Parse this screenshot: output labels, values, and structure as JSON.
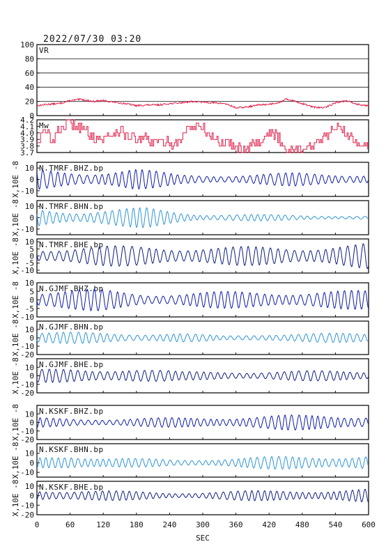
{
  "timestamp": "2022/07/30 03:20",
  "colors": {
    "frame": "#111111",
    "grid": "#111111",
    "vr_line": "#e0204a",
    "mw_line": "#e0204a",
    "bhz": "#0a1aa8",
    "bhn": "#2a93d8",
    "bhe": "#0a1a80"
  },
  "chart_data": [
    {
      "type": "line",
      "name": "vr-panel",
      "title": "VR",
      "ylim": [
        0,
        100
      ],
      "yticks": [
        "0",
        "20",
        "40",
        "60",
        "80",
        "100"
      ],
      "ytick_values": [
        0,
        20,
        40,
        60,
        80,
        100
      ],
      "grid": true,
      "xlim": [
        0,
        600
      ],
      "series": [
        {
          "x": [
            0,
            20,
            40,
            60,
            80,
            100,
            120,
            140,
            160,
            180,
            200,
            220,
            240,
            260,
            280,
            300,
            320,
            340,
            360,
            380,
            400,
            420,
            440,
            450,
            460,
            480,
            500,
            520,
            540,
            560,
            580,
            600
          ],
          "y": [
            14,
            16,
            17,
            21,
            23,
            20,
            21,
            19,
            17,
            14,
            15,
            15,
            17,
            18,
            20,
            19,
            18,
            17,
            11,
            12,
            15,
            16,
            19,
            23,
            22,
            17,
            12,
            11,
            18,
            21,
            16,
            14
          ]
        }
      ]
    },
    {
      "type": "line",
      "name": "mw-panel",
      "title": "Mw",
      "ylim": [
        3.7,
        4.2
      ],
      "yticks": [
        "3.7",
        "3.8",
        "3.9",
        "4.0",
        "4.1",
        "4.2"
      ],
      "ytick_values": [
        3.7,
        3.8,
        3.9,
        4.0,
        4.1,
        4.2
      ],
      "grid": false,
      "xlim": [
        0,
        600
      ],
      "series": [
        {
          "x": [
            0,
            15,
            30,
            45,
            60,
            75,
            90,
            105,
            120,
            135,
            150,
            165,
            180,
            195,
            210,
            225,
            240,
            255,
            270,
            285,
            300,
            315,
            330,
            345,
            360,
            375,
            390,
            405,
            420,
            435,
            450,
            465,
            480,
            495,
            510,
            525,
            540,
            555,
            570,
            585,
            600
          ],
          "y": [
            3.9,
            4.0,
            3.9,
            4.1,
            4.15,
            4.1,
            4.0,
            3.95,
            3.9,
            4.0,
            4.05,
            3.95,
            3.9,
            3.9,
            3.85,
            3.85,
            3.85,
            3.85,
            4.05,
            4.1,
            4.05,
            3.95,
            3.85,
            3.85,
            3.8,
            3.75,
            3.85,
            3.9,
            4.0,
            3.95,
            3.75,
            3.75,
            3.75,
            3.8,
            3.85,
            3.95,
            4.1,
            4.0,
            3.9,
            3.85,
            3.85
          ]
        }
      ]
    },
    {
      "type": "line",
      "name": "waveform-n-tmrf-bhz",
      "title": "N.TMRF.BHZ.bp",
      "ylabel": "X,10E -8",
      "ylim": [
        -15,
        15
      ],
      "yticks": [
        "10",
        "0",
        "-10"
      ],
      "ytick_values": [
        10,
        0,
        -10
      ],
      "xlim": [
        0,
        600
      ],
      "color_key": "bhz",
      "wave": {
        "segments": [
          [
            0,
            0.9
          ],
          [
            90,
            0.7
          ],
          [
            175,
            1.0
          ],
          [
            255,
            0.45
          ],
          [
            380,
            0.45
          ],
          [
            470,
            0.6
          ],
          [
            600,
            0.5
          ]
        ],
        "period": 13,
        "amplitude": 10
      }
    },
    {
      "type": "line",
      "name": "waveform-n-tmrf-bhn",
      "title": "N.TMRF.BHN.bp",
      "ylabel": "X,10E -8",
      "ylim": [
        -15,
        15
      ],
      "yticks": [
        "10",
        "0",
        "-10"
      ],
      "ytick_values": [
        10,
        0,
        -10
      ],
      "xlim": [
        0,
        600
      ],
      "color_key": "bhn",
      "wave": {
        "segments": [
          [
            0,
            0.95
          ],
          [
            80,
            0.6
          ],
          [
            200,
            0.9
          ],
          [
            300,
            0.35
          ],
          [
            450,
            0.25
          ],
          [
            600,
            0.15
          ]
        ],
        "period": 13,
        "amplitude": 10
      }
    },
    {
      "type": "line",
      "name": "waveform-n-tmrf-bhe",
      "title": "N.TMRF.BHE.bp",
      "ylabel": "X,10E -8",
      "ylim": [
        -12,
        12
      ],
      "yticks": [
        "10",
        "5",
        "0",
        "-5",
        "-10"
      ],
      "ytick_values": [
        10,
        5,
        0,
        -5,
        -10
      ],
      "xlim": [
        0,
        600
      ],
      "color_key": "bhe",
      "wave": {
        "segments": [
          [
            0,
            0.6
          ],
          [
            100,
            0.7
          ],
          [
            220,
            0.75
          ],
          [
            320,
            0.65
          ],
          [
            460,
            0.7
          ],
          [
            600,
            0.9
          ]
        ],
        "period": 14,
        "amplitude": 10
      }
    },
    {
      "type": "line",
      "name": "waveform-n-gjmf-bhz",
      "title": "N.GJMF.BHZ.bp",
      "ylabel": "X,10E -8",
      "ylim": [
        -10,
        10
      ],
      "yticks": [
        "10",
        "5",
        "0",
        "-5",
        "-10"
      ],
      "ytick_values": [
        10,
        5,
        0,
        -5,
        -10
      ],
      "xlim": [
        0,
        600
      ],
      "color_key": "bhz",
      "wave": {
        "segments": [
          [
            0,
            0.75
          ],
          [
            110,
            0.8
          ],
          [
            200,
            0.5
          ],
          [
            300,
            0.6
          ],
          [
            420,
            0.65
          ],
          [
            600,
            0.7
          ]
        ],
        "period": 13,
        "amplitude": 8
      }
    },
    {
      "type": "line",
      "name": "waveform-n-gjmf-bhn",
      "title": "N.GJMF.BHN.bp",
      "ylabel": "X,10E -8",
      "ylim": [
        -20,
        20
      ],
      "yticks": [
        "10",
        "0",
        "-10",
        "-20"
      ],
      "ytick_values": [
        10,
        0,
        -10,
        -20
      ],
      "xlim": [
        0,
        600
      ],
      "color_key": "bhn",
      "wave": {
        "segments": [
          [
            0,
            0.45
          ],
          [
            120,
            0.4
          ],
          [
            260,
            0.35
          ],
          [
            340,
            0.15
          ],
          [
            420,
            0.35
          ],
          [
            600,
            0.35
          ]
        ],
        "period": 13,
        "amplitude": 16
      }
    },
    {
      "type": "line",
      "name": "waveform-n-gjmf-bhe",
      "title": "N.GJMF.BHE.bp",
      "ylabel": "X,10E -8",
      "ylim": [
        -20,
        20
      ],
      "yticks": [
        "10",
        "0",
        "-10",
        "-20"
      ],
      "ytick_values": [
        10,
        0,
        -10,
        -20
      ],
      "xlim": [
        0,
        600
      ],
      "color_key": "bhe",
      "wave": {
        "segments": [
          [
            0,
            0.5
          ],
          [
            100,
            0.45
          ],
          [
            170,
            0.7
          ],
          [
            260,
            0.3
          ],
          [
            380,
            0.35
          ],
          [
            600,
            0.4
          ]
        ],
        "period": 13,
        "amplitude": 16
      }
    },
    {
      "type": "line",
      "name": "waveform-n-kskf-bhz",
      "title": "N.KSKF.BHZ.bp",
      "ylabel": "X,10E -8",
      "ylim": [
        -20,
        20
      ],
      "yticks": [
        "10",
        "0",
        "-10",
        "-20"
      ],
      "ytick_values": [
        10,
        0,
        -10,
        -20
      ],
      "xlim": [
        0,
        600
      ],
      "color_key": "bhz",
      "wave": {
        "segments": [
          [
            0,
            0.35
          ],
          [
            160,
            0.3
          ],
          [
            300,
            0.4
          ],
          [
            450,
            0.55
          ],
          [
            600,
            0.6
          ]
        ],
        "period": 12,
        "amplitude": 16
      }
    },
    {
      "type": "line",
      "name": "waveform-n-kskf-bhn",
      "title": "N.KSKF.BHN.bp",
      "ylabel": "X,10E -8",
      "ylim": [
        -15,
        20
      ],
      "yticks": [
        "10",
        "0",
        "-10"
      ],
      "ytick_values": [
        10,
        0,
        -10
      ],
      "xlim": [
        0,
        600
      ],
      "color_key": "bhn",
      "wave": {
        "segments": [
          [
            0,
            0.6
          ],
          [
            60,
            1.0
          ],
          [
            120,
            0.55
          ],
          [
            250,
            0.35
          ],
          [
            450,
            0.7
          ],
          [
            600,
            0.85
          ]
        ],
        "period": 12,
        "amplitude": 10
      }
    },
    {
      "type": "line",
      "name": "waveform-n-kskf-bhe",
      "title": "N.KSKF.BHE.bp",
      "ylabel": "X,10E -8",
      "ylim": [
        -20,
        15
      ],
      "yticks": [
        "10",
        "0",
        "-10",
        "-20"
      ],
      "ytick_values": [
        10,
        0,
        -10,
        -20
      ],
      "xlim": [
        0,
        600
      ],
      "color_key": "bhe",
      "wave": {
        "segments": [
          [
            0,
            0.6
          ],
          [
            120,
            0.45
          ],
          [
            240,
            0.3
          ],
          [
            400,
            0.45
          ],
          [
            600,
            0.6
          ]
        ],
        "period": 12,
        "amplitude": 12
      }
    }
  ],
  "x_axis": {
    "label": "SEC",
    "ticks": [
      "0",
      "60",
      "120",
      "180",
      "240",
      "300",
      "360",
      "420",
      "480",
      "540",
      "600"
    ],
    "tick_values": [
      0,
      60,
      120,
      180,
      240,
      300,
      360,
      420,
      480,
      540,
      600
    ]
  }
}
